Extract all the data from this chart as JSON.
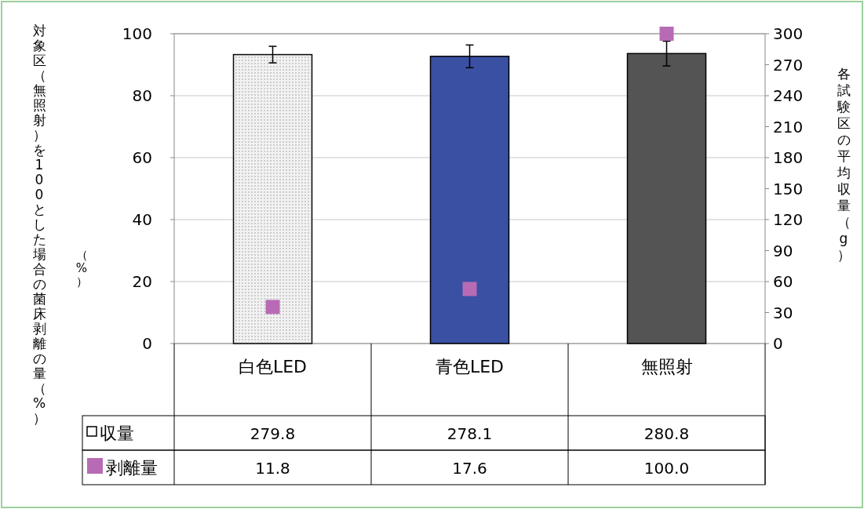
{
  "chart_data": {
    "type": "bar",
    "categories": [
      "白色LED",
      "青色LED",
      "無照射"
    ],
    "ylabel": "対象区（無照射）を100とした場合の菌床剥離の量（%）",
    "y2label": "各試験区の平均収量（g）",
    "annotations": [
      "（%）"
    ],
    "series": [
      {
        "name": "収量",
        "axis": "y2",
        "colors": [
          "#f2f2f2",
          "#3a50a2",
          "#545454"
        ],
        "values": [
          279.8,
          278.1,
          280.8
        ],
        "errors": [
          8,
          11,
          12
        ],
        "value_labels": [
          "279.8",
          "278.1",
          "280.8"
        ]
      },
      {
        "name": "剥離量",
        "type": "scatter",
        "color": "#b86bb5",
        "marker": "square",
        "values": [
          11.8,
          17.6,
          100.0
        ],
        "value_labels": [
          "11.8",
          "17.6",
          "100.0"
        ]
      }
    ],
    "ylim": [
      0,
      100
    ],
    "yticks": [
      0,
      20,
      40,
      60,
      80,
      100
    ],
    "y2lim": [
      0,
      300
    ],
    "y2ticks": [
      0,
      30,
      60,
      90,
      120,
      150,
      180,
      210,
      240,
      270,
      300
    ],
    "grid": "y",
    "legend": "bottom"
  }
}
